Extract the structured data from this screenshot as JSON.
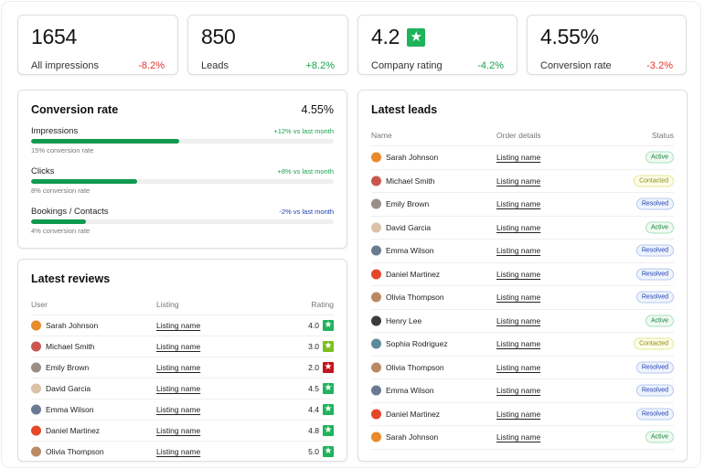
{
  "kpis": [
    {
      "value": "1654",
      "label": "All impressions",
      "delta": "-8.2%",
      "trend": "down"
    },
    {
      "value": "850",
      "label": "Leads",
      "delta": "+8.2%",
      "trend": "up"
    },
    {
      "value": "4.2",
      "label": "Company rating",
      "delta": "-4.2%",
      "trend": "up",
      "icon": "star-icon"
    },
    {
      "value": "4.55%",
      "label": "Conversion rate",
      "delta": "-3.2%",
      "trend": "down"
    }
  ],
  "conversion": {
    "title": "Conversion rate",
    "total": "4.55%",
    "metrics": [
      {
        "label": "Impressions",
        "delta": "+12% vs last month",
        "trend": "up",
        "sub": "15% conversion rate",
        "progress": 0.49
      },
      {
        "label": "Clicks",
        "delta": "+8% vs last month",
        "trend": "up",
        "sub": "8% conversion rate",
        "progress": 0.35
      },
      {
        "label": "Bookings / Contacts",
        "delta": "-2% vs last month",
        "trend": "neg-blue",
        "sub": "4% conversion rate",
        "progress": 0.18
      }
    ]
  },
  "reviews": {
    "title": "Latest reviews",
    "columns": [
      "User",
      "Listing",
      "Rating"
    ],
    "rows": [
      {
        "user": "Sarah Johnson",
        "listing": "Listing name",
        "rating": "4.0",
        "star_color": "#1fb35b",
        "avatar_color": "#e8892b"
      },
      {
        "user": "Michael Smith",
        "listing": "Listing name",
        "rating": "3.0",
        "star_color": "#7cbf1f",
        "avatar_color": "#c9574f"
      },
      {
        "user": "Emily Brown",
        "listing": "Listing name",
        "rating": "2.0",
        "star_color": "#c4141c",
        "avatar_color": "#9a8e86"
      },
      {
        "user": "David Garcia",
        "listing": "Listing name",
        "rating": "4.5",
        "star_color": "#1fb35b",
        "avatar_color": "#d9c2a6"
      },
      {
        "user": "Emma Wilson",
        "listing": "Listing name",
        "rating": "4.4",
        "star_color": "#1fb35b",
        "avatar_color": "#6a7b91"
      },
      {
        "user": "Daniel Martinez",
        "listing": "Listing name",
        "rating": "4.8",
        "star_color": "#1fb35b",
        "avatar_color": "#e5472b"
      },
      {
        "user": "Olivia Thompson",
        "listing": "Listing name",
        "rating": "5.0",
        "star_color": "#1fb35b",
        "avatar_color": "#b98a64"
      }
    ]
  },
  "leads": {
    "title": "Latest leads",
    "columns": [
      "Name",
      "Order details",
      "Status"
    ],
    "rows": [
      {
        "name": "Sarah Johnson",
        "order": "Listing name",
        "status": "Active",
        "avatar_color": "#e8892b"
      },
      {
        "name": "Michael Smith",
        "order": "Listing name",
        "status": "Contacted",
        "avatar_color": "#c9574f"
      },
      {
        "name": "Emily Brown",
        "order": "Listing name",
        "status": "Resolved",
        "avatar_color": "#9a8e86"
      },
      {
        "name": "David Garcia",
        "order": "Listing name",
        "status": "Active",
        "avatar_color": "#d9c2a6"
      },
      {
        "name": "Emma Wilson",
        "order": "Listing name",
        "status": "Resolved",
        "avatar_color": "#6a7b91"
      },
      {
        "name": "Daniel Martinez",
        "order": "Listing name",
        "status": "Resolved",
        "avatar_color": "#e5472b"
      },
      {
        "name": "Olivia Thompson",
        "order": "Listing name",
        "status": "Resolved",
        "avatar_color": "#b98a64"
      },
      {
        "name": "Henry Lee",
        "order": "Listing name",
        "status": "Active",
        "avatar_color": "#3b3b3b"
      },
      {
        "name": "Sophia Rodriguez",
        "order": "Listing name",
        "status": "Contacted",
        "avatar_color": "#5c8a9a"
      },
      {
        "name": "Olivia Thompson",
        "order": "Listing name",
        "status": "Resolved",
        "avatar_color": "#b98a64"
      },
      {
        "name": "Emma Wilson",
        "order": "Listing name",
        "status": "Resolved",
        "avatar_color": "#6a7b91"
      },
      {
        "name": "Daniel Martinez",
        "order": "Listing name",
        "status": "Resolved",
        "avatar_color": "#e5472b"
      },
      {
        "name": "Sarah Johnson",
        "order": "Listing name",
        "status": "Active",
        "avatar_color": "#e8892b"
      }
    ]
  },
  "colors": {
    "positive": "#16a34a",
    "negative": "#e5322d",
    "progress_fill": "#0f9a4f",
    "rating_star": "#1fb35b"
  }
}
